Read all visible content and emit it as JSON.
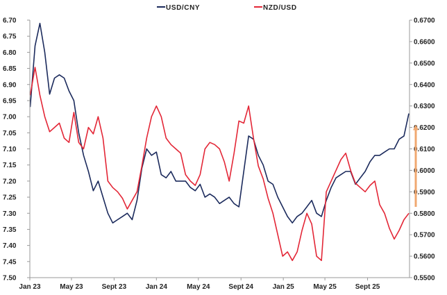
{
  "chart_data": {
    "type": "line",
    "title": "",
    "xlabel": "",
    "ylabel_left": "",
    "ylabel_right": "",
    "x_tick_labels": [
      "Jan 23",
      "May 23",
      "Sept 23",
      "Jan 24",
      "May 24",
      "Sept 24",
      "Jan 25",
      "May 25",
      "Sept 25"
    ],
    "x_tick_dates": [
      "2023-01-01",
      "2023-05-01",
      "2023-09-01",
      "2024-01-01",
      "2024-05-01",
      "2024-09-01",
      "2025-01-01",
      "2025-05-01",
      "2025-09-01"
    ],
    "xlim": [
      "2023-01-01",
      "2025-12-31"
    ],
    "left_axis": {
      "inverted": true,
      "ylim": [
        6.7,
        7.5
      ],
      "ticks": [
        "6.70",
        "6.75",
        "6.80",
        "6.85",
        "6.90",
        "6.95",
        "7.00",
        "7.05",
        "7.10",
        "7.15",
        "7.20",
        "7.25",
        "7.30",
        "7.35",
        "7.40",
        "7.45",
        "7.50"
      ]
    },
    "right_axis": {
      "ylim": [
        0.55,
        0.67
      ],
      "ticks": [
        "0.6700",
        "0.6600",
        "0.6500",
        "0.6400",
        "0.6300",
        "0.6200",
        "0.6100",
        "0.6000",
        "0.5900",
        "0.5800",
        "0.5700",
        "0.5600",
        "0.5500"
      ]
    },
    "legend_position": "top",
    "grid": false,
    "series": [
      {
        "name": "USD/CNY",
        "axis": "left",
        "color": "#1b2a5c",
        "x": [
          "2023-01-02",
          "2023-01-16",
          "2023-01-30",
          "2023-02-13",
          "2023-02-27",
          "2023-03-13",
          "2023-03-27",
          "2023-04-10",
          "2023-04-24",
          "2023-05-08",
          "2023-05-22",
          "2023-06-05",
          "2023-06-19",
          "2023-07-03",
          "2023-07-17",
          "2023-07-31",
          "2023-08-14",
          "2023-08-28",
          "2023-09-11",
          "2023-09-25",
          "2023-10-09",
          "2023-10-23",
          "2023-11-06",
          "2023-11-20",
          "2023-12-04",
          "2023-12-18",
          "2024-01-01",
          "2024-01-15",
          "2024-01-29",
          "2024-02-12",
          "2024-02-26",
          "2024-03-11",
          "2024-03-25",
          "2024-04-08",
          "2024-04-22",
          "2024-05-06",
          "2024-05-20",
          "2024-06-03",
          "2024-06-17",
          "2024-07-01",
          "2024-07-15",
          "2024-07-29",
          "2024-08-12",
          "2024-08-26",
          "2024-09-09",
          "2024-09-23",
          "2024-10-07",
          "2024-10-21",
          "2024-11-04",
          "2024-11-18",
          "2024-12-02",
          "2024-12-16",
          "2024-12-30",
          "2025-01-13",
          "2025-01-27",
          "2025-02-10",
          "2025-02-24",
          "2025-03-10",
          "2025-03-24",
          "2025-04-07",
          "2025-04-21",
          "2025-05-05",
          "2025-05-19",
          "2025-06-02",
          "2025-06-16",
          "2025-06-30",
          "2025-07-14",
          "2025-07-28",
          "2025-08-11",
          "2025-08-25",
          "2025-09-08",
          "2025-09-22",
          "2025-10-06",
          "2025-10-20",
          "2025-11-03",
          "2025-11-17",
          "2025-12-01",
          "2025-12-15",
          "2025-12-29"
        ],
        "values": [
          6.97,
          6.78,
          6.71,
          6.8,
          6.93,
          6.88,
          6.87,
          6.88,
          6.92,
          6.95,
          7.05,
          7.12,
          7.17,
          7.23,
          7.2,
          7.25,
          7.3,
          7.33,
          7.32,
          7.31,
          7.3,
          7.32,
          7.26,
          7.16,
          7.1,
          7.12,
          7.11,
          7.18,
          7.19,
          7.17,
          7.2,
          7.2,
          7.2,
          7.22,
          7.23,
          7.21,
          7.25,
          7.24,
          7.25,
          7.27,
          7.26,
          7.25,
          7.27,
          7.28,
          7.17,
          7.06,
          7.07,
          7.12,
          7.15,
          7.2,
          7.21,
          7.25,
          7.28,
          7.31,
          7.33,
          7.31,
          7.3,
          7.28,
          7.26,
          7.3,
          7.31,
          7.26,
          7.22,
          7.19,
          7.18,
          7.17,
          7.17,
          7.21,
          7.19,
          7.17,
          7.14,
          7.12,
          7.12,
          7.11,
          7.1,
          7.1,
          7.07,
          7.06,
          6.99
        ]
      },
      {
        "name": "NZD/USD",
        "axis": "right",
        "color": "#e32636",
        "x": [
          "2023-01-02",
          "2023-01-16",
          "2023-01-30",
          "2023-02-13",
          "2023-02-27",
          "2023-03-13",
          "2023-03-27",
          "2023-04-10",
          "2023-04-24",
          "2023-05-08",
          "2023-05-22",
          "2023-06-05",
          "2023-06-19",
          "2023-07-03",
          "2023-07-17",
          "2023-07-31",
          "2023-08-14",
          "2023-08-28",
          "2023-09-11",
          "2023-09-25",
          "2023-10-09",
          "2023-10-23",
          "2023-11-06",
          "2023-11-20",
          "2023-12-04",
          "2023-12-18",
          "2024-01-01",
          "2024-01-15",
          "2024-01-29",
          "2024-02-12",
          "2024-02-26",
          "2024-03-11",
          "2024-03-25",
          "2024-04-08",
          "2024-04-22",
          "2024-05-06",
          "2024-05-20",
          "2024-06-03",
          "2024-06-17",
          "2024-07-01",
          "2024-07-15",
          "2024-07-29",
          "2024-08-12",
          "2024-08-26",
          "2024-09-09",
          "2024-09-23",
          "2024-10-07",
          "2024-10-21",
          "2024-11-04",
          "2024-11-18",
          "2024-12-02",
          "2024-12-16",
          "2024-12-30",
          "2025-01-13",
          "2025-01-27",
          "2025-02-10",
          "2025-02-24",
          "2025-03-10",
          "2025-03-24",
          "2025-04-07",
          "2025-04-21",
          "2025-05-05",
          "2025-05-19",
          "2025-06-02",
          "2025-06-16",
          "2025-06-30",
          "2025-07-14",
          "2025-07-28",
          "2025-08-11",
          "2025-08-25",
          "2025-09-08",
          "2025-09-22",
          "2025-10-06",
          "2025-10-20",
          "2025-11-03",
          "2025-11-17",
          "2025-12-01",
          "2025-12-15",
          "2025-12-29"
        ],
        "values": [
          0.635,
          0.648,
          0.635,
          0.625,
          0.618,
          0.62,
          0.622,
          0.615,
          0.613,
          0.627,
          0.613,
          0.61,
          0.62,
          0.617,
          0.625,
          0.615,
          0.595,
          0.592,
          0.59,
          0.587,
          0.582,
          0.586,
          0.59,
          0.602,
          0.615,
          0.625,
          0.63,
          0.625,
          0.615,
          0.612,
          0.61,
          0.608,
          0.598,
          0.595,
          0.593,
          0.598,
          0.61,
          0.613,
          0.612,
          0.61,
          0.604,
          0.595,
          0.608,
          0.623,
          0.622,
          0.63,
          0.615,
          0.602,
          0.596,
          0.587,
          0.58,
          0.57,
          0.56,
          0.562,
          0.558,
          0.562,
          0.572,
          0.58,
          0.575,
          0.56,
          0.558,
          0.59,
          0.595,
          0.6,
          0.605,
          0.608,
          0.6,
          0.594,
          0.592,
          0.59,
          0.593,
          0.595,
          0.584,
          0.58,
          0.573,
          0.568,
          0.572,
          0.577,
          0.58
        ]
      }
    ],
    "annotations": [
      {
        "type": "arrow",
        "direction": "up",
        "color": "#f0a870",
        "x": "2025-12-31",
        "from": 0.583,
        "to": 0.621,
        "axis": "right"
      }
    ]
  }
}
